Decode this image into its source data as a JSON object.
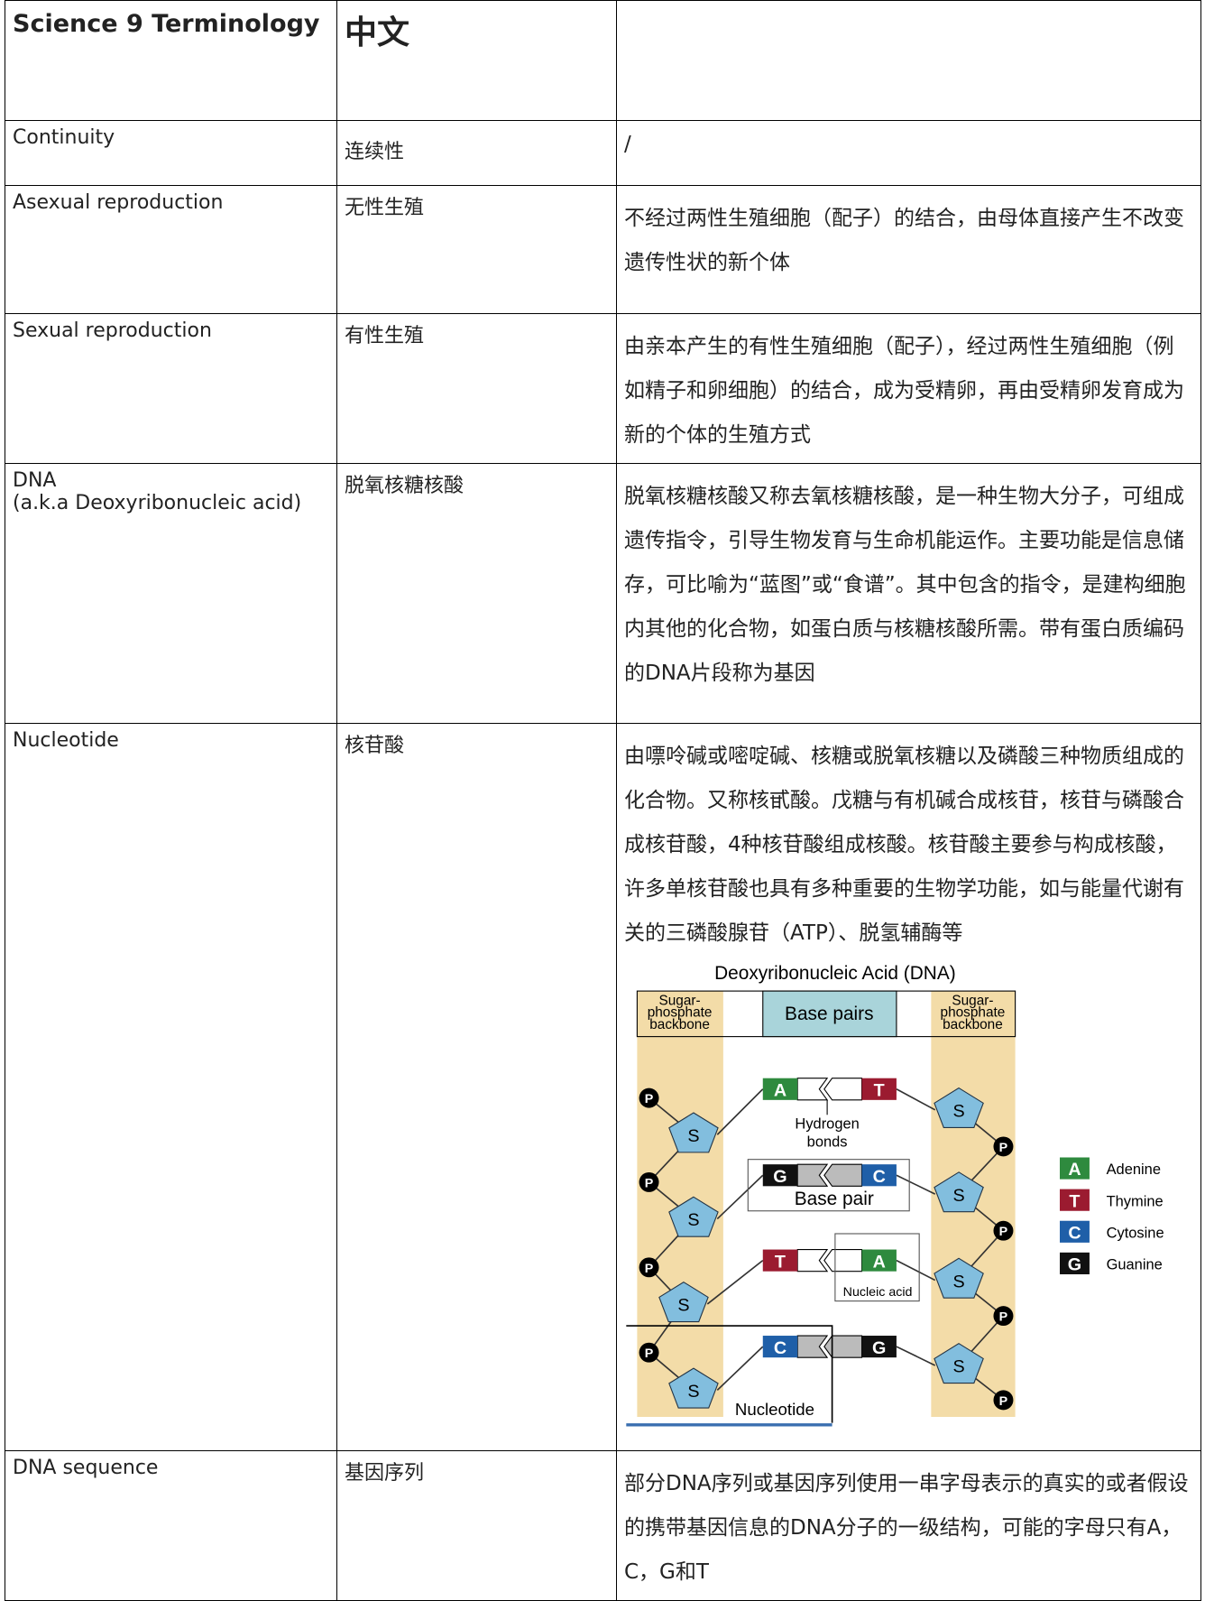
{
  "table": {
    "header": [
      "Science 9 Terminology",
      "中文",
      ""
    ],
    "rows": [
      {
        "term": "Continuity",
        "chinese": "连续性",
        "definition": "/"
      },
      {
        "term": "Asexual reproduction",
        "chinese": "无性生殖",
        "definition": "不经过两性生殖细胞（配子）的结合，由母体直接产生不改变遗传性状的新个体"
      },
      {
        "term": "Sexual reproduction",
        "chinese": "有性生殖",
        "definition": "由亲本产生的有性生殖细胞（配子），经过两性生殖细胞（例如精子和卵细胞）的结合，成为受精卵，再由受精卵发育成为新的个体的生殖方式"
      },
      {
        "term": "DNA",
        "term_note": "(a.k.a Deoxyribonucleic acid)",
        "chinese": "脱氧核糖核酸",
        "definition": "脱氧核糖核酸又称去氧核糖核酸，是一种生物大分子，可组成遗传指令，引导生物发育与生命机能运作。主要功能是信息储存，可比喻为“蓝图”或“食谱”。其中包含的指令，是建构细胞内其他的化合物，如蛋白质与核糖核酸所需。带有蛋白质编码的DNA片段称为基因"
      },
      {
        "term": "Nucleotide",
        "chinese": "核苷酸",
        "definition": "由嘌呤碱或嘧啶碱、核糖或脱氧核糖以及磷酸三种物质组成的化合物。又称核甙酸。戊糖与有机碱合成核苷，核苷与磷酸合成核苷酸，4种核苷酸组成核酸。核苷酸主要参与构成核酸，许多单核苷酸也具有多种重要的生物学功能，如与能量代谢有关的三磷酸腺苷（ATP）、脱氢辅酶等"
      },
      {
        "term": "DNA sequence",
        "chinese": "基因序列",
        "definition": "部分DNA序列或基因序列使用一串字母表示的真实的或者假设的携带基因信息的DNA分子的一级结构，可能的字母只有A，C，G和T"
      }
    ]
  },
  "diagram": {
    "title": "Deoxyribonucleic Acid (DNA)",
    "backbone": "Sugar-phosphate backbone",
    "base_pairs": "Base pairs",
    "hydrogen_bonds": "Hydrogen bonds",
    "base_pair": "Base pair",
    "nucleic_acid": "Nucleic acid",
    "nucleotide": "Nucleotide",
    "sugar": "S",
    "phosphate": "P",
    "pairs": [
      [
        "A",
        "T"
      ],
      [
        "G",
        "C"
      ],
      [
        "T",
        "A"
      ],
      [
        "C",
        "G"
      ]
    ],
    "legend": [
      {
        "letter": "A",
        "name": "Adenine"
      },
      {
        "letter": "T",
        "name": "Thymine"
      },
      {
        "letter": "C",
        "name": "Cytosine"
      },
      {
        "letter": "G",
        "name": "Guanine"
      }
    ]
  }
}
